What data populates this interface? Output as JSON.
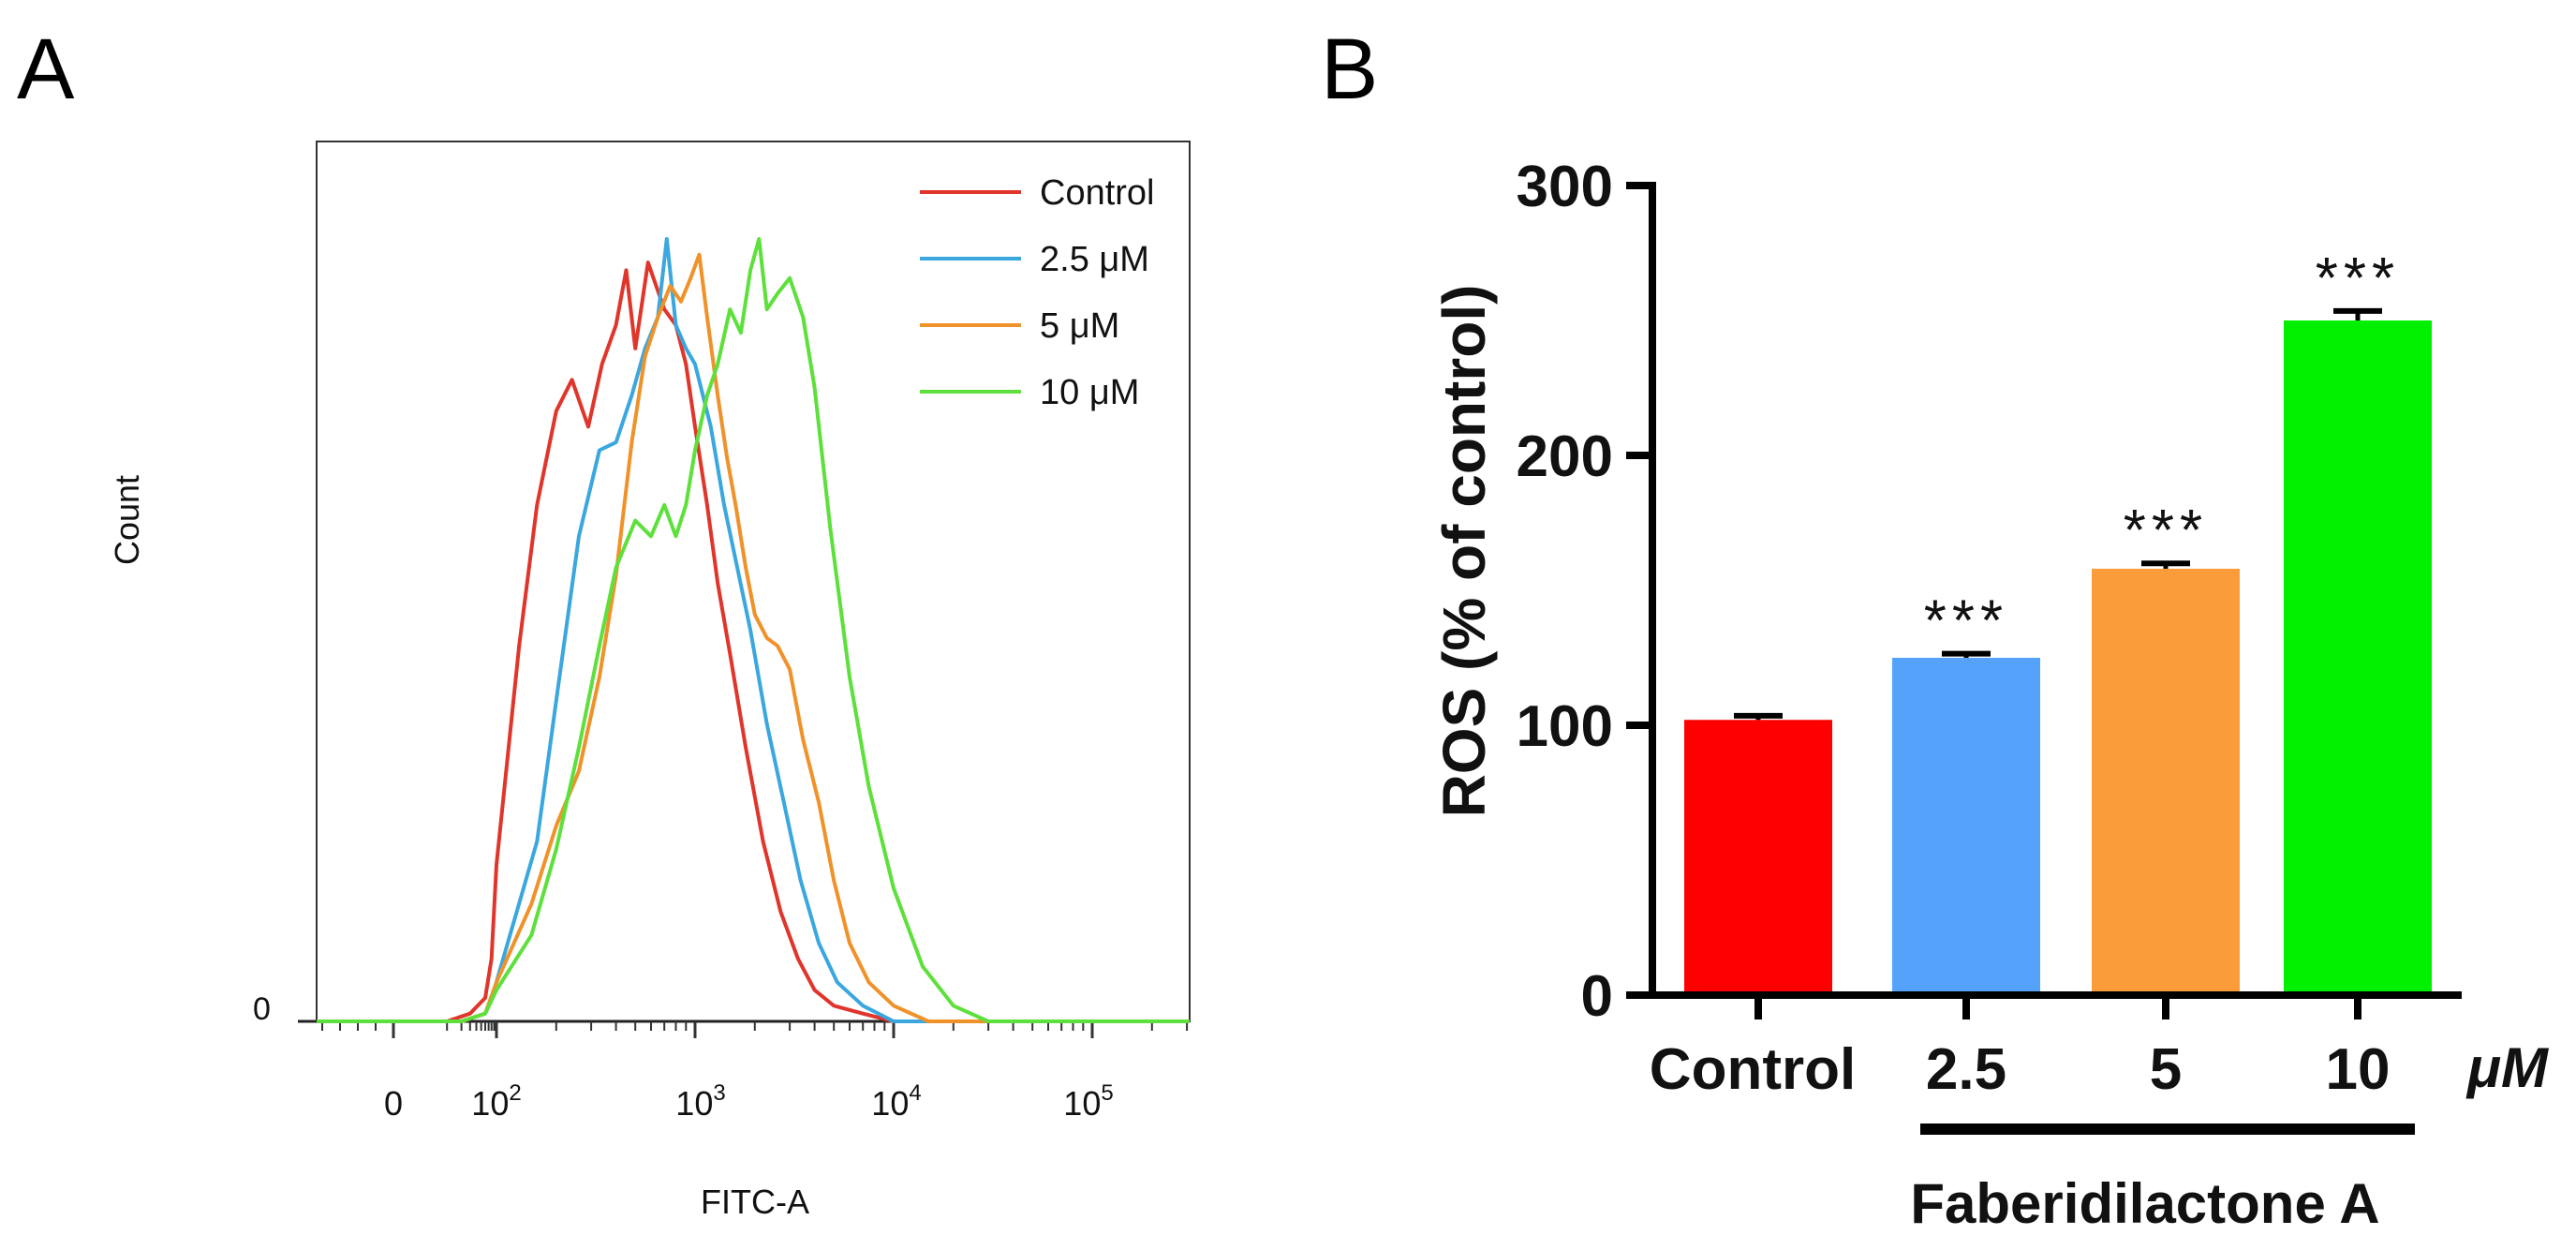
{
  "chart_data": [
    {
      "panel": "A",
      "type": "line",
      "title": "",
      "xlabel": "FITC-A",
      "ylabel": "Count",
      "xscale": "biexponential",
      "xtick_labels": [
        {
          "base": "0",
          "exp": ""
        },
        {
          "base": "10",
          "exp": "2"
        },
        {
          "base": "10",
          "exp": "3"
        },
        {
          "base": "10",
          "exp": "4"
        },
        {
          "base": "10",
          "exp": "5"
        }
      ],
      "ytick_labels": [
        "0"
      ],
      "ylim": [
        0,
        100
      ],
      "legend_position": "top-right",
      "series": [
        {
          "name": "Control",
          "color": "#e0352b",
          "x": [
            10,
            30,
            60,
            80,
            100,
            130,
            160,
            200,
            240,
            290,
            340,
            400,
            450,
            500,
            580,
            700,
            800,
            900,
            1000,
            1150,
            1300,
            1500,
            1800,
            2200,
            2700,
            3300,
            4000,
            5000,
            7000,
            10000
          ],
          "y": [
            0,
            1,
            3,
            8,
            20,
            48,
            66,
            78,
            82,
            76,
            84,
            89,
            96,
            86,
            97,
            91,
            89,
            84,
            76,
            66,
            56,
            47,
            35,
            23,
            14,
            8,
            4,
            2,
            1,
            0
          ]
        },
        {
          "name": "2.5 μM",
          "color": "#3aa7df",
          "x": [
            20,
            60,
            90,
            120,
            160,
            200,
            260,
            330,
            400,
            480,
            560,
            650,
            720,
            800,
            900,
            1000,
            1200,
            1400,
            1600,
            1900,
            2300,
            2800,
            3400,
            4200,
            5200,
            7000,
            10000
          ],
          "y": [
            0,
            1,
            4,
            12,
            23,
            41,
            62,
            73,
            74,
            80,
            86,
            90,
            100,
            89,
            86,
            84,
            76,
            66,
            59,
            50,
            38,
            28,
            18,
            10,
            5,
            2,
            0
          ]
        },
        {
          "name": "5 μM",
          "color": "#f0922a",
          "x": [
            20,
            60,
            100,
            150,
            200,
            260,
            330,
            400,
            480,
            560,
            650,
            750,
            850,
            950,
            1050,
            1150,
            1300,
            1450,
            1600,
            1800,
            2000,
            2300,
            2600,
            3000,
            3500,
            4200,
            5000,
            6000,
            7500,
            10000,
            15000
          ],
          "y": [
            0,
            1,
            5,
            15,
            25,
            32,
            44,
            57,
            74,
            85,
            90,
            94,
            92,
            95,
            98,
            90,
            80,
            72,
            66,
            58,
            52,
            49,
            48,
            45,
            36,
            28,
            18,
            10,
            5,
            2,
            0
          ]
        },
        {
          "name": "10 μM",
          "color": "#5ee03c",
          "x": [
            20,
            60,
            100,
            150,
            200,
            260,
            330,
            400,
            500,
            600,
            700,
            800,
            900,
            1000,
            1150,
            1300,
            1500,
            1700,
            1900,
            2100,
            2300,
            2600,
            3000,
            3500,
            4000,
            4800,
            6000,
            7500,
            10000,
            14000,
            20000,
            30000
          ],
          "y": [
            0,
            1,
            4,
            11,
            22,
            35,
            48,
            58,
            64,
            62,
            66,
            62,
            66,
            73,
            80,
            84,
            91,
            88,
            96,
            100,
            91,
            93,
            95,
            90,
            81,
            63,
            44,
            30,
            17,
            7,
            2,
            0
          ]
        }
      ]
    },
    {
      "panel": "B",
      "type": "bar",
      "title": "",
      "xlabel": "Faberidilactone A",
      "ylabel": "ROS (% of control)",
      "unit_label": "μM",
      "categories": [
        "Control",
        "2.5",
        "5",
        "10"
      ],
      "values": [
        102,
        125,
        158,
        250
      ],
      "errors": [
        1.5,
        1.5,
        2.0,
        3.5
      ],
      "significance": [
        "",
        "***",
        "***",
        "***"
      ],
      "colors": [
        "#ff0000",
        "#55a2fb",
        "#fb9c3b",
        "#00f000"
      ],
      "ylim": [
        0,
        300
      ],
      "yticks": [
        0,
        100,
        200,
        300
      ]
    }
  ],
  "panels": {
    "a_label": "A",
    "b_label": "B"
  }
}
